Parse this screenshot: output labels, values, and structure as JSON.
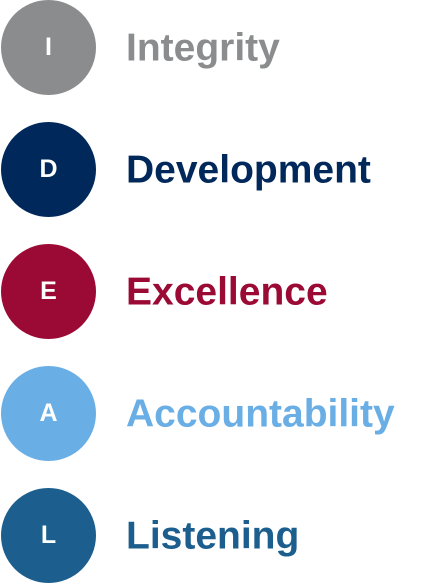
{
  "values": [
    {
      "letter": "I",
      "word": "Integrity",
      "color": "#8a8c8e"
    },
    {
      "letter": "D",
      "word": "Development",
      "color": "#00285a"
    },
    {
      "letter": "E",
      "word": "Excellence",
      "color": "#9b0a35"
    },
    {
      "letter": "A",
      "word": "Accountability",
      "color": "#6aaee6"
    },
    {
      "letter": "L",
      "word": "Listening",
      "color": "#1c5f8e"
    }
  ]
}
